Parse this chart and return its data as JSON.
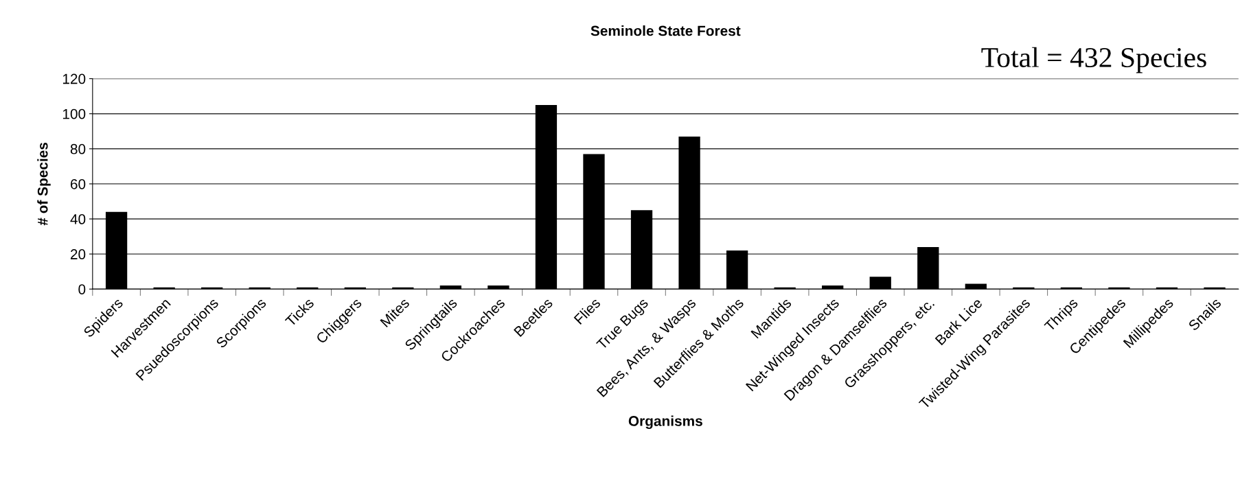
{
  "chart_data": {
    "type": "bar",
    "title": "Seminole State Forest",
    "xlabel": "Organisms",
    "ylabel": "# of Species",
    "categories": [
      "Spiders",
      "Harvestmen",
      "Psuedoscorpions",
      "Scorpions",
      "Ticks",
      "Chiggers",
      "Mites",
      "Springtails",
      "Cockroaches",
      "Beetles",
      "Flies",
      "True Bugs",
      "Bees, Ants, & Wasps",
      "Butterflies & Moths",
      "Mantids",
      "Net-Winged Insects",
      "Dragon & Damselflies",
      "Grasshoppers, etc.",
      "Bark Lice",
      "Twisted-Wing Parasites",
      "Thrips",
      "Centipedes",
      "Millipedes",
      "Snails"
    ],
    "values": [
      44,
      1,
      1,
      1,
      1,
      1,
      1,
      2,
      2,
      105,
      77,
      45,
      87,
      22,
      1,
      2,
      7,
      24,
      3,
      1,
      1,
      1,
      1,
      1
    ],
    "color": "#000000",
    "ylim": [
      0,
      120
    ],
    "yticks": [
      0,
      20,
      40,
      60,
      80,
      100,
      120
    ],
    "grid": "y",
    "annotations": [
      "Total = 432 Species"
    ]
  }
}
